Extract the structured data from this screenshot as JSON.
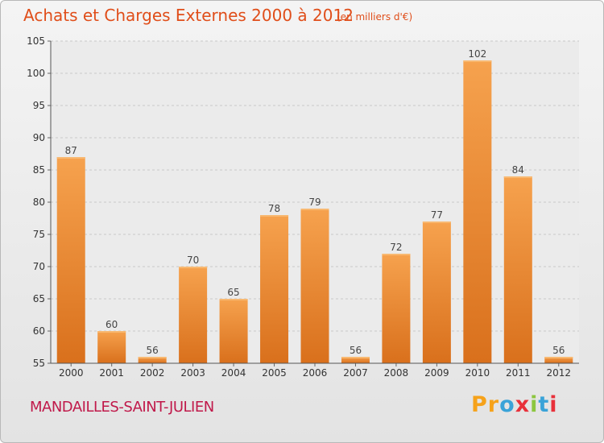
{
  "header": {
    "title": "Achats et Charges Externes 2000 à 2012",
    "subtitle": "(en milliers d'€)"
  },
  "footer": {
    "commune": "MANDAILLES-SAINT-JULIEN",
    "logo_text": "Proxiti"
  },
  "colors": {
    "bar_top": "#f6a24e",
    "bar_bottom": "#d9701c",
    "title": "#e04e1a",
    "commune": "#c0194a"
  },
  "chart_data": {
    "type": "bar",
    "title": "Achats et Charges Externes 2000 à 2012",
    "subtitle": "(en milliers d'€)",
    "categories": [
      "2000",
      "2001",
      "2002",
      "2003",
      "2004",
      "2005",
      "2006",
      "2007",
      "2008",
      "2009",
      "2010",
      "2011",
      "2012"
    ],
    "values": [
      87,
      60,
      56,
      70,
      65,
      78,
      79,
      56,
      72,
      77,
      102,
      84,
      56
    ],
    "ylim": [
      55,
      105
    ],
    "yticks": [
      55,
      60,
      65,
      70,
      75,
      80,
      85,
      90,
      95,
      100,
      105
    ],
    "grid": true,
    "xlabel": "",
    "ylabel": ""
  }
}
